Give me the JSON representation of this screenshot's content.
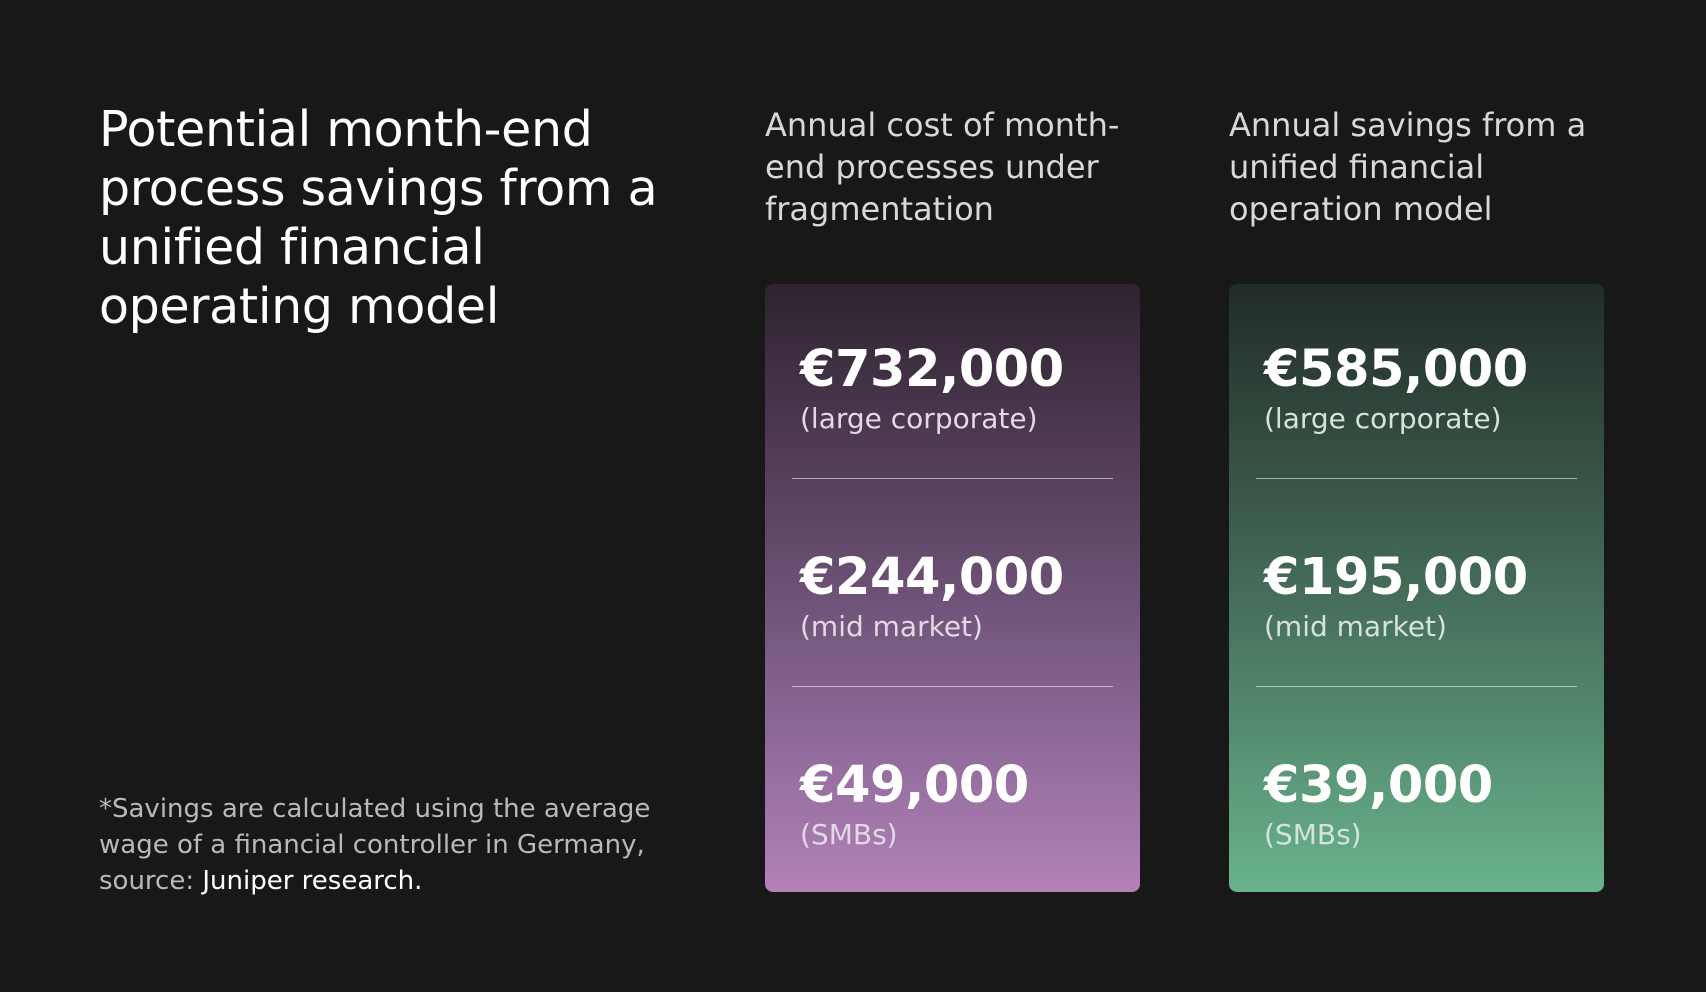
{
  "title": "Potential month-end process savings from a unified financial operating model",
  "footnote": {
    "text": "*Savings are calculated using the average wage of a financial controller in Germany, source: ",
    "source_link": "Juniper research."
  },
  "columns": [
    {
      "heading": "Annual cost of month-end processes under fragmentation",
      "tiers": [
        {
          "amount": "€732,000",
          "label": "(large corporate)"
        },
        {
          "amount": "€244,000",
          "label": "(mid market)"
        },
        {
          "amount": "€49,000",
          "label": "(SMBs)"
        }
      ]
    },
    {
      "heading": "Annual savings from a unified financial operation model",
      "tiers": [
        {
          "amount": "€585,000",
          "label": "(large corporate)"
        },
        {
          "amount": "€195,000",
          "label": "(mid market)"
        },
        {
          "amount": "€39,000",
          "label": "(SMBs)"
        }
      ]
    }
  ],
  "colors": {
    "background": "#181818",
    "cost_card_gradient": [
      "#2e232f",
      "#b281b8"
    ],
    "savings_card_gradient": [
      "#222c27",
      "#69b38c"
    ]
  }
}
